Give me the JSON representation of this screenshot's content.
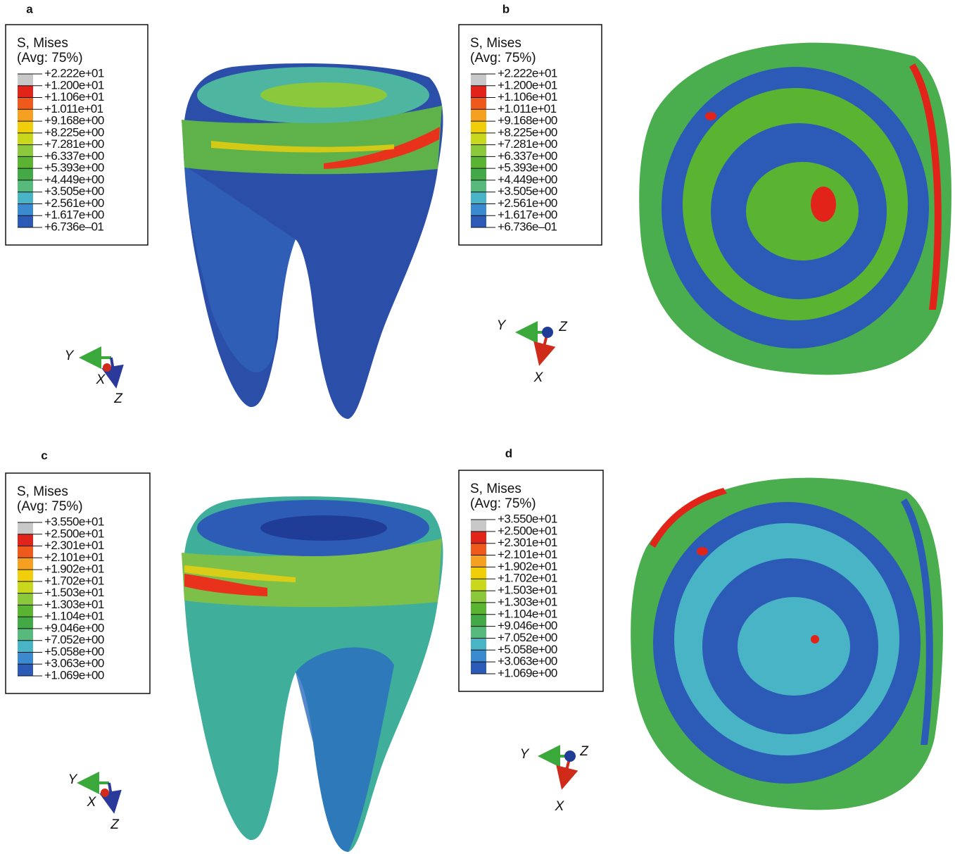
{
  "panels": [
    {
      "label": "a",
      "legend": {
        "title": "S, Mises",
        "subtitle": "(Avg: 75%)",
        "ticks": [
          "+2.222e+01",
          "+1.200e+01",
          "+1.106e+01",
          "+1.011e+01",
          "+9.168e+00",
          "+8.225e+00",
          "+7.281e+00",
          "+6.337e+00",
          "+5.393e+00",
          "+4.449e+00",
          "+3.505e+00",
          "+2.561e+00",
          "+1.617e+00",
          "+6.736e–01"
        ]
      },
      "axes": [
        "Y",
        "X",
        "Z"
      ]
    },
    {
      "label": "b",
      "legend": {
        "title": "S, Mises",
        "subtitle": "(Avg: 75%)",
        "ticks": [
          "+2.222e+01",
          "+1.200e+01",
          "+1.106e+01",
          "+1.011e+01",
          "+9.168e+00",
          "+8.225e+00",
          "+7.281e+00",
          "+6.337e+00",
          "+5.393e+00",
          "+4.449e+00",
          "+3.505e+00",
          "+2.561e+00",
          "+1.617e+00",
          "+6.736e–01"
        ]
      },
      "axes": [
        "Y",
        "Z",
        "X"
      ]
    },
    {
      "label": "c",
      "legend": {
        "title": "S, Mises",
        "subtitle": "(Avg: 75%)",
        "ticks": [
          "+3.550e+01",
          "+2.500e+01",
          "+2.301e+01",
          "+2.101e+01",
          "+1.902e+01",
          "+1.702e+01",
          "+1.503e+01",
          "+1.303e+01",
          "+1.104e+01",
          "+9.046e+00",
          "+7.052e+00",
          "+5.058e+00",
          "+3.063e+00",
          "+1.069e+00"
        ]
      },
      "axes": [
        "Y",
        "X",
        "Z"
      ]
    },
    {
      "label": "d",
      "legend": {
        "title": "S, Mises",
        "subtitle": "(Avg: 75%)",
        "ticks": [
          "+3.550e+01",
          "+2.500e+01",
          "+2.301e+01",
          "+2.101e+01",
          "+1.902e+01",
          "+1.702e+01",
          "+1.503e+01",
          "+1.303e+01",
          "+1.104e+01",
          "+9.046e+00",
          "+7.052e+00",
          "+5.058e+00",
          "+3.063e+00",
          "+1.069e+00"
        ]
      },
      "axes": [
        "Y",
        "Z",
        "X"
      ]
    }
  ]
}
